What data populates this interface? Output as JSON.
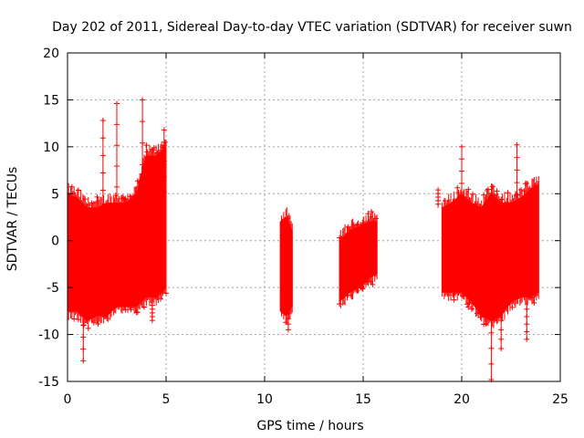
{
  "chart_data": {
    "type": "scatter",
    "title": "Day 202 of 2011, Sidereal Day-to-day VTEC variation (SDTVAR) for receiver suwn",
    "xlabel": "GPS time / hours",
    "ylabel": "SDTVAR / TECUs",
    "xlim": [
      0,
      25
    ],
    "ylim": [
      -15,
      20
    ],
    "xticks": [
      0,
      5,
      10,
      15,
      20,
      25
    ],
    "yticks": [
      -15,
      -10,
      -5,
      0,
      5,
      10,
      15,
      20
    ],
    "grid": true,
    "series_color": "#ff0000",
    "series": [
      {
        "name": "SDTVAR",
        "marker": "plus",
        "envelope_note": "dense band of red plus markers; per-hour min/max envelope",
        "segments": [
          {
            "x": [
              0.0,
              0.5,
              1.0,
              1.5,
              2.0,
              2.5,
              3.0,
              3.5,
              4.0,
              4.5,
              5.0
            ],
            "y_min": [
              -7.5,
              -7.5,
              -8.5,
              -8.0,
              -8.0,
              -7.0,
              -7.0,
              -7.0,
              -6.0,
              -6.0,
              -5.0
            ],
            "y_max": [
              5.0,
              4.5,
              3.5,
              3.5,
              4.0,
              4.0,
              4.0,
              5.0,
              9.0,
              9.0,
              10.0
            ]
          },
          {
            "x": [
              10.8,
              11.1,
              11.4
            ],
            "y_min": [
              -7.5,
              -8.0,
              -7.0
            ],
            "y_max": [
              2.0,
              2.5,
              1.0
            ]
          },
          {
            "x": [
              13.8,
              14.3,
              14.8,
              15.3,
              15.7
            ],
            "y_min": [
              -6.5,
              -5.5,
              -5.0,
              -4.0,
              -3.5
            ],
            "y_max": [
              0.0,
              1.0,
              1.5,
              2.0,
              2.0
            ]
          },
          {
            "x": [
              19.0,
              19.5,
              20.0,
              20.5,
              21.0,
              21.5,
              22.0,
              22.5,
              23.0,
              23.5,
              23.9
            ],
            "y_min": [
              -5.5,
              -5.5,
              -5.5,
              -6.5,
              -8.0,
              -8.5,
              -8.0,
              -6.5,
              -6.0,
              -6.0,
              -5.5
            ],
            "y_max": [
              3.5,
              4.0,
              5.0,
              4.0,
              3.5,
              5.0,
              4.0,
              4.0,
              4.5,
              5.5,
              6.0
            ]
          }
        ],
        "spikes": [
          {
            "x": 0.8,
            "y": -12.8
          },
          {
            "x": 1.8,
            "y": 12.8
          },
          {
            "x": 2.5,
            "y": 14.6
          },
          {
            "x": 3.8,
            "y": 15.0
          },
          {
            "x": 4.3,
            "y": -8.5
          },
          {
            "x": 4.9,
            "y": 11.8
          },
          {
            "x": 11.2,
            "y": -9.5
          },
          {
            "x": 18.8,
            "y": 5.4
          },
          {
            "x": 20.0,
            "y": 10.0
          },
          {
            "x": 21.5,
            "y": -14.8
          },
          {
            "x": 22.0,
            "y": -11.5
          },
          {
            "x": 22.8,
            "y": 10.2
          },
          {
            "x": 23.3,
            "y": -10.5
          }
        ]
      }
    ]
  }
}
